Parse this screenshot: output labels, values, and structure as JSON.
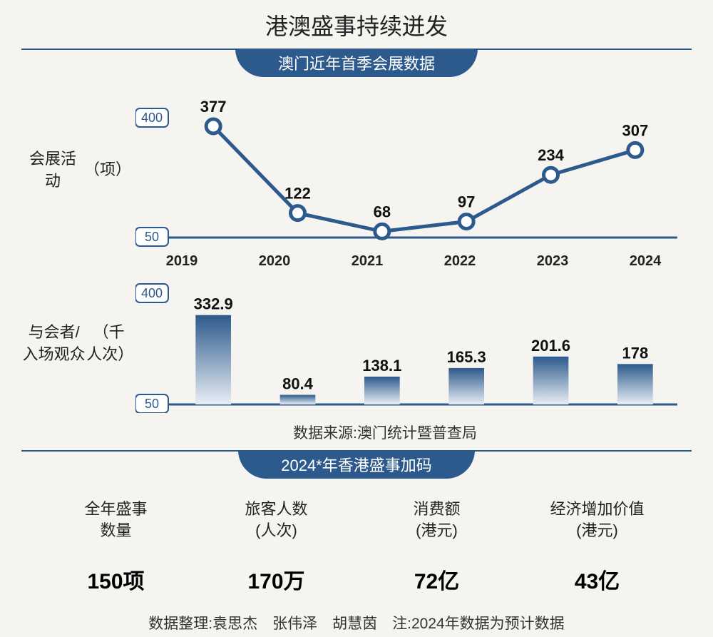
{
  "title": "港澳盛事持续迸发",
  "section1": {
    "banner": "澳门近年首季会展数据",
    "years": [
      "2019",
      "2020",
      "2021",
      "2022",
      "2023",
      "2024"
    ],
    "line_chart": {
      "type": "line",
      "y_label": "会展活动\n（项）",
      "ylim": [
        50,
        400
      ],
      "ytick_top": "400",
      "ytick_bottom": "50",
      "values": [
        377,
        122,
        68,
        97,
        234,
        307
      ],
      "line_color": "#2d5a8c",
      "line_width": 5,
      "marker_fill": "#ffffff",
      "marker_stroke": "#2d5a8c",
      "marker_radius": 10,
      "marker_stroke_width": 5,
      "label_fontsize": 22
    },
    "bar_chart": {
      "type": "bar",
      "y_label": "与会者/入场观众\n（千人次）",
      "ylim": [
        50,
        400
      ],
      "ytick_top": "400",
      "ytick_bottom": "50",
      "values": [
        332.9,
        80.4,
        138.1,
        165.3,
        201.6,
        178
      ],
      "bar_gradient_top": "#2d5a8c",
      "bar_gradient_bottom": "#e8eef5",
      "bar_width_ratio": 0.42,
      "label_fontsize": 22
    },
    "source": "数据来源:澳门统计暨普查局"
  },
  "section2": {
    "banner": "2024*年香港盛事加码",
    "stats": [
      {
        "label": "全年盛事\n数量",
        "value": "150项"
      },
      {
        "label": "旅客人数\n(人次)",
        "value": "170万"
      },
      {
        "label": "消费额\n(港元)",
        "value": "72亿"
      },
      {
        "label": "经济增加价值\n(港元)",
        "value": "43亿"
      }
    ],
    "footer": "数据整理:袁思杰　张伟泽　胡慧茵　注:2024年数据为预计数据"
  },
  "colors": {
    "primary": "#2d5a8c",
    "background": "#f5f4f0",
    "text": "#222222"
  }
}
